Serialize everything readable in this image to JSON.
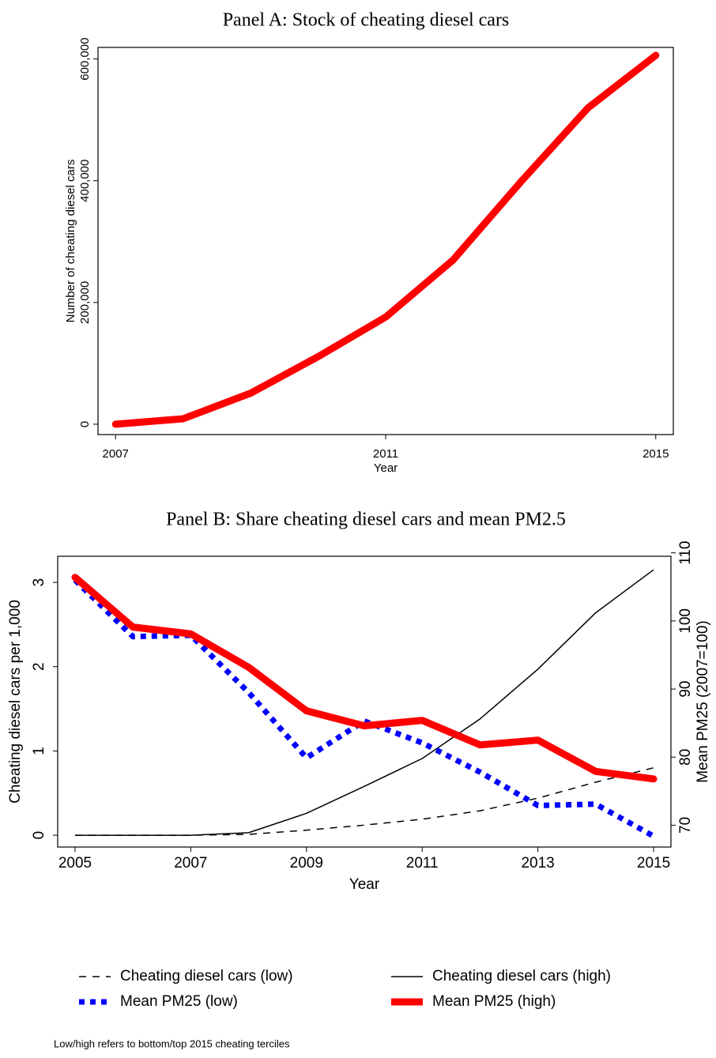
{
  "chart_data": [
    {
      "type": "line",
      "title": "Panel A: Stock of cheating diesel cars",
      "x_label": "Year",
      "y_label": "Number of cheating diesel cars",
      "x": [
        2007,
        2008,
        2009,
        2010,
        2011,
        2012,
        2013,
        2014,
        2015
      ],
      "values": [
        0,
        9000,
        51000,
        111000,
        176000,
        270000,
        398000,
        520000,
        606000
      ],
      "color": "#ff0000",
      "line_style": "thick",
      "xlim": [
        2006.74,
        2015.26
      ],
      "xticks": [
        2007,
        2011,
        2015
      ],
      "ylim": [
        -17000,
        619000
      ],
      "yticks": [
        0,
        {
          "value": 200000,
          "label": "200,000"
        },
        {
          "value": 400000,
          "label": "400,000"
        },
        {
          "value": 600000,
          "label": "600,000"
        }
      ]
    },
    {
      "type": "line",
      "title": "Panel B: Share cheating diesel cars and mean PM2.5",
      "x_label": "Year",
      "y_label": "Cheating diesel cars per 1,000",
      "y2_label": "Mean PM25 (2007=100)",
      "x": [
        2005,
        2006,
        2007,
        2008,
        2009,
        2010,
        2011,
        2012,
        2013,
        2014,
        2015
      ],
      "series": [
        {
          "name": "Cheating diesel cars (low)",
          "color": "#000000",
          "line_style": "dash",
          "values": [
            0,
            0,
            0,
            0.01,
            0.06,
            0.12,
            0.19,
            0.29,
            0.44,
            0.63,
            0.8
          ]
        },
        {
          "name": "Cheating diesel cars (high)",
          "color": "#000000",
          "line_style": "thin",
          "values": [
            0,
            0,
            0,
            0.03,
            0.26,
            0.58,
            0.91,
            1.38,
            1.97,
            2.64,
            3.15
          ]
        },
        {
          "name": "Mean PM25 (low)",
          "color": "#0000ff",
          "line_style": "dot",
          "axis": "y2",
          "values": [
            106.0,
            97.7,
            97.9,
            89.5,
            79.9,
            85.3,
            82.1,
            77.8,
            72.9,
            73.1,
            68.4
          ]
        },
        {
          "name": "Mean PM25 (high)",
          "color": "#ff0000",
          "line_style": "thick",
          "axis": "y2",
          "values": [
            106.4,
            99.1,
            98.1,
            93.2,
            86.8,
            84.6,
            85.4,
            81.8,
            82.5,
            77.9,
            76.8
          ]
        }
      ],
      "xlim": [
        2004.7,
        2015.3
      ],
      "xticks": [
        2005,
        2007,
        2009,
        2011,
        2013,
        2015
      ],
      "ylim": [
        -0.14,
        3.31
      ],
      "yticks": [
        0,
        1,
        2,
        3
      ],
      "y2lim": [
        66.8,
        109.5
      ],
      "y2ticks": [
        70,
        80,
        90,
        100,
        110
      ],
      "note": "Low/high refers to bottom/top 2015 cheating terciles"
    }
  ]
}
